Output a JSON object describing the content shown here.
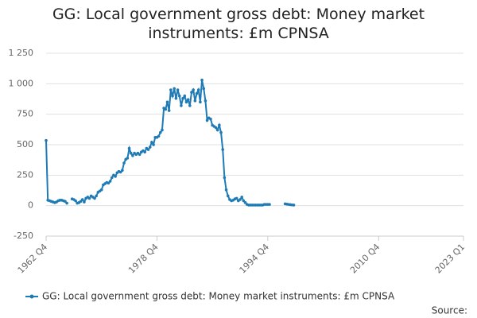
{
  "chart_data": {
    "type": "line",
    "title": "GG: Local government gross debt: Money market instruments: £m CPNSA",
    "source": "Source:",
    "x": [
      1962.75,
      1963,
      1963.25,
      1963.5,
      1963.75,
      1964,
      1964.25,
      1964.5,
      1964.75,
      1965,
      1965.25,
      1965.5,
      1965.75,
      1966,
      1966.25,
      1966.5,
      1966.75,
      1967,
      1967.25,
      1967.5,
      1967.75,
      1968,
      1968.25,
      1968.5,
      1968.75,
      1969,
      1969.25,
      1969.5,
      1969.75,
      1970,
      1970.25,
      1970.5,
      1970.75,
      1971,
      1971.25,
      1971.5,
      1971.75,
      1972,
      1972.25,
      1972.5,
      1972.75,
      1973,
      1973.25,
      1973.5,
      1973.75,
      1974,
      1974.25,
      1974.5,
      1974.75,
      1975,
      1975.25,
      1975.5,
      1975.75,
      1976,
      1976.25,
      1976.5,
      1976.75,
      1977,
      1977.25,
      1977.5,
      1977.75,
      1978,
      1978.25,
      1978.5,
      1978.75,
      1979,
      1979.25,
      1979.5,
      1979.75,
      1980,
      1980.25,
      1980.5,
      1980.75,
      1981,
      1981.25,
      1981.5,
      1981.75,
      1982,
      1982.25,
      1982.5,
      1982.75,
      1983,
      1983.25,
      1983.5,
      1983.75,
      1984,
      1984.25,
      1984.5,
      1984.75,
      1985,
      1985.25,
      1985.5,
      1985.75,
      1986,
      1986.25,
      1986.5,
      1986.75,
      1987,
      1987.25,
      1987.5,
      1987.75,
      1988,
      1988.25,
      1988.5,
      1988.75,
      1989,
      1989.25,
      1989.5,
      1989.75,
      1990,
      1990.25,
      1990.5,
      1990.75,
      1991,
      1991.25,
      1991.5,
      1991.75,
      1992,
      1992.25,
      1992.5,
      1992.75,
      1993,
      1993.25,
      1993.5,
      1993.75,
      1994,
      1994.25,
      1994.5,
      1994.75,
      1995,
      1995.25,
      1995.5,
      1995.75,
      1996,
      1996.25,
      1996.5,
      1996.75,
      1997,
      1997.25,
      1997.5,
      1997.75,
      1998,
      1998.25,
      1998.5
    ],
    "series": [
      {
        "name": "GG: Local government gross debt: Money market instruments: £m CPNSA",
        "color": "#1f7bb6",
        "values": [
          535,
          45,
          40,
          35,
          30,
          25,
          30,
          40,
          45,
          45,
          40,
          35,
          20,
          null,
          null,
          55,
          50,
          40,
          20,
          25,
          35,
          50,
          30,
          60,
          70,
          60,
          80,
          70,
          60,
          80,
          110,
          120,
          130,
          170,
          180,
          190,
          185,
          200,
          230,
          250,
          240,
          270,
          280,
          275,
          290,
          350,
          380,
          390,
          470,
          430,
          410,
          430,
          420,
          430,
          420,
          440,
          450,
          440,
          470,
          460,
          480,
          520,
          500,
          560,
          560,
          570,
          600,
          620,
          800,
          790,
          850,
          780,
          950,
          900,
          960,
          880,
          950,
          900,
          820,
          880,
          900,
          850,
          870,
          820,
          930,
          950,
          860,
          920,
          950,
          850,
          1030,
          960,
          860,
          700,
          720,
          710,
          660,
          650,
          640,
          620,
          660,
          600,
          460,
          230,
          130,
          80,
          50,
          40,
          45,
          55,
          60,
          40,
          50,
          70,
          40,
          25,
          10,
          5,
          5,
          5,
          5,
          5,
          5,
          5,
          5,
          5,
          10,
          10,
          10,
          10,
          null,
          null,
          null,
          null,
          null,
          null,
          null,
          null,
          15,
          12,
          10,
          8,
          6,
          5
        ]
      }
    ],
    "xlim": [
      1962.75,
      2023
    ],
    "xticks": [
      {
        "value": 1962.75,
        "label": "1962 Q4"
      },
      {
        "value": 1978.75,
        "label": "1978 Q4"
      },
      {
        "value": 1994.75,
        "label": "1994 Q4"
      },
      {
        "value": 2010.75,
        "label": "2010 Q4"
      },
      {
        "value": 2023,
        "label": "2023 Q1"
      }
    ],
    "ylim": [
      -250,
      1250
    ],
    "yticks": [
      -250,
      0,
      250,
      500,
      750,
      {
        "value": 1000,
        "label": "1 000"
      },
      {
        "value": 1250,
        "label": "1 250"
      }
    ],
    "grid": true
  }
}
